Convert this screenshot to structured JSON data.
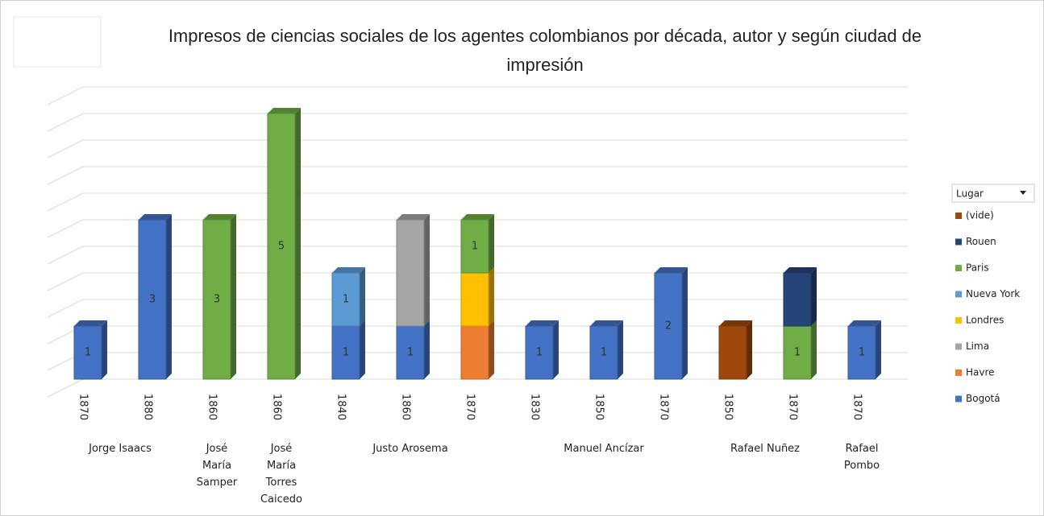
{
  "chart_data": {
    "type": "bar",
    "stacked": true,
    "title": "Impresos de ciencias sociales de los agentes colombianos por década, autor y según ciudad de impresión",
    "groups": [
      {
        "label": "Jorge Isaacs",
        "categories": [
          "1870",
          "1880"
        ]
      },
      {
        "label": "José María Samper",
        "categories": [
          "1860"
        ]
      },
      {
        "label": "José María Torres Caicedo",
        "categories": [
          "1860"
        ]
      },
      {
        "label": "Justo Arosema",
        "categories": [
          "1840",
          "1860",
          "1870"
        ]
      },
      {
        "label": "Manuel Ancízar",
        "categories": [
          "1830",
          "1850",
          "1870"
        ]
      },
      {
        "label": "Rafael Nuñez",
        "categories": [
          "1850",
          "1870"
        ]
      },
      {
        "label": "Rafael Pombo",
        "categories": [
          "1870"
        ]
      }
    ],
    "series": [
      {
        "name": "Bogotá",
        "color": "#4472c4",
        "values": [
          1,
          3,
          null,
          null,
          1,
          1,
          null,
          1,
          1,
          2,
          null,
          null,
          1
        ],
        "value_labels": [
          "1",
          "3",
          null,
          null,
          "1",
          "1",
          null,
          "1",
          "1",
          "2",
          null,
          null,
          "1"
        ]
      },
      {
        "name": "Havre",
        "color": "#ed7d31",
        "values": [
          null,
          null,
          null,
          null,
          null,
          null,
          1,
          null,
          null,
          null,
          null,
          null,
          null
        ],
        "value_labels": [
          null,
          null,
          null,
          null,
          null,
          null,
          null,
          null,
          null,
          null,
          null,
          null,
          null
        ]
      },
      {
        "name": "Lima",
        "color": "#a5a5a5",
        "values": [
          null,
          null,
          null,
          null,
          null,
          2,
          null,
          null,
          null,
          null,
          null,
          null,
          null
        ],
        "value_labels": [
          null,
          null,
          null,
          null,
          null,
          null,
          null,
          null,
          null,
          null,
          null,
          null,
          null
        ]
      },
      {
        "name": "Londres",
        "color": "#ffc000",
        "values": [
          null,
          null,
          null,
          null,
          null,
          null,
          1,
          null,
          null,
          null,
          null,
          null,
          null
        ],
        "value_labels": [
          null,
          null,
          null,
          null,
          null,
          null,
          null,
          null,
          null,
          null,
          null,
          null,
          null
        ]
      },
      {
        "name": "Nueva York",
        "color": "#5b9bd5",
        "values": [
          null,
          null,
          null,
          null,
          1,
          null,
          null,
          null,
          null,
          null,
          null,
          null,
          null
        ],
        "value_labels": [
          null,
          null,
          null,
          null,
          "1",
          null,
          null,
          null,
          null,
          null,
          null,
          null,
          null
        ]
      },
      {
        "name": "Paris",
        "color": "#70ad47",
        "values": [
          null,
          null,
          3,
          5,
          null,
          null,
          1,
          null,
          null,
          null,
          null,
          1,
          null
        ],
        "value_labels": [
          null,
          null,
          "3",
          "5",
          null,
          null,
          "1",
          null,
          null,
          null,
          null,
          "1",
          null
        ]
      },
      {
        "name": "Rouen",
        "color": "#264478",
        "values": [
          null,
          null,
          null,
          null,
          null,
          null,
          null,
          null,
          null,
          null,
          null,
          1,
          null
        ],
        "value_labels": [
          null,
          null,
          null,
          null,
          null,
          null,
          null,
          null,
          null,
          null,
          null,
          null,
          null
        ]
      },
      {
        "name": "(vide)",
        "color": "#9e480e",
        "values": [
          null,
          null,
          null,
          null,
          null,
          null,
          null,
          null,
          null,
          null,
          1,
          null,
          null
        ],
        "value_labels": [
          null,
          null,
          null,
          null,
          null,
          null,
          null,
          null,
          null,
          null,
          null,
          null,
          null
        ]
      }
    ],
    "legend_title": "Lugar",
    "ylim": [
      0,
      5.5
    ],
    "yticks": [
      0,
      0.5,
      1,
      1.5,
      2,
      2.5,
      3,
      3.5,
      4,
      4.5,
      5,
      5.5
    ],
    "grid": true
  }
}
